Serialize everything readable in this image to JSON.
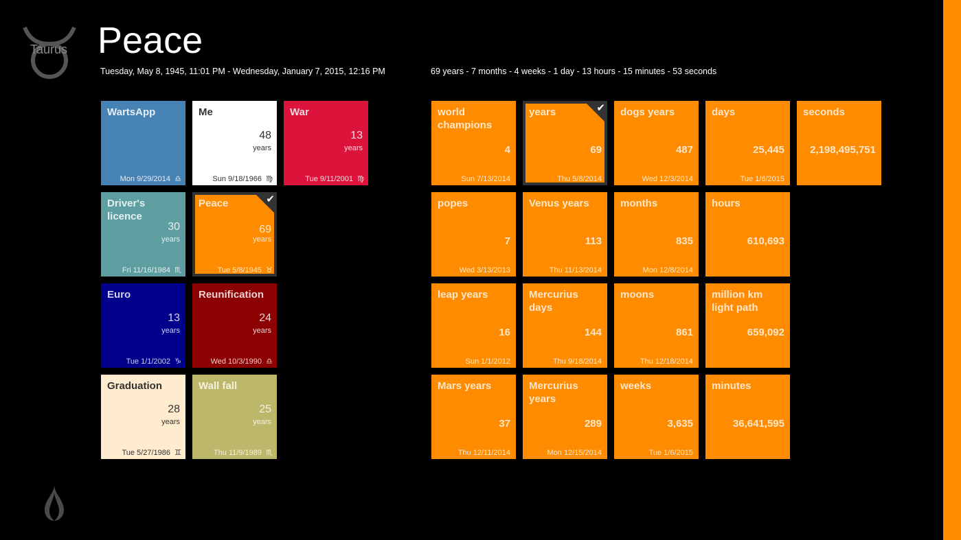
{
  "header": {
    "sign_label": "Taurus",
    "title": "Peace",
    "date_range": "Tuesday, May 8, 1945, 11:01 PM  -  Wednesday, January 7, 2015, 12:16 PM",
    "duration": "69 years - 7 months - 4 weeks - 1 day - 13 hours - 15 minutes - 53 seconds"
  },
  "colors": {
    "accent": "#ff8c00",
    "selected_border": "#333333",
    "background": "#000000"
  },
  "events": [
    {
      "title": "WartsApp",
      "number": "",
      "unit": "",
      "date": "Mon 9/29/2014",
      "sign": "♎",
      "bg": "#4682b4",
      "fg": "#e6eef6"
    },
    {
      "title": "Me",
      "number": "48",
      "unit": "years",
      "date": "Sun 9/18/1966",
      "sign": "♍",
      "bg": "#ffffff",
      "fg": "#333333"
    },
    {
      "title": "War",
      "number": "13",
      "unit": "years",
      "date": "Tue 9/11/2001",
      "sign": "♍",
      "bg": "#dc143c",
      "fg": "#f5d8de"
    },
    {
      "title": "Driver's licence",
      "number": "30",
      "unit": "years",
      "date": "Fri 11/16/1984",
      "sign": "♏",
      "bg": "#5f9ea0",
      "fg": "#e4f0f0"
    },
    {
      "title": "Peace",
      "number": "69",
      "unit": "years",
      "date": "Tue 5/8/1945",
      "sign": "♉",
      "bg": "#ff8c00",
      "fg": "#ffe6c8",
      "selected": true
    },
    {
      "title": "Euro",
      "number": "13",
      "unit": "years",
      "date": "Tue 1/1/2002",
      "sign": "♑",
      "bg": "#00008b",
      "fg": "#d0d0f0"
    },
    {
      "title": "Reunification",
      "number": "24",
      "unit": "years",
      "date": "Wed 10/3/1990",
      "sign": "♎",
      "bg": "#8b0000",
      "fg": "#f0d0d0"
    },
    {
      "title": "Graduation",
      "number": "28",
      "unit": "years",
      "date": "Tue 5/27/1986",
      "sign": "♊",
      "bg": "#ffebcd",
      "fg": "#333333"
    },
    {
      "title": "Wall fall",
      "number": "25",
      "unit": "years",
      "date": "Thu 11/9/1989",
      "sign": "♏",
      "bg": "#bdb76b",
      "fg": "#f4f2dc"
    }
  ],
  "stats": [
    {
      "title": "world champions",
      "number": "4",
      "date": "Sun 7/13/2014"
    },
    {
      "title": "years",
      "number": "69",
      "date": "Thu 5/8/2014",
      "selected": true
    },
    {
      "title": "dogs years",
      "number": "487",
      "date": "Wed 12/3/2014"
    },
    {
      "title": "days",
      "number": "25,445",
      "date": "Tue 1/6/2015"
    },
    {
      "title": "seconds",
      "number": "2,198,495,751",
      "date": ""
    },
    {
      "title": "popes",
      "number": "7",
      "date": "Wed 3/13/2013"
    },
    {
      "title": "Venus years",
      "number": "113",
      "date": "Thu 11/13/2014"
    },
    {
      "title": "months",
      "number": "835",
      "date": "Mon 12/8/2014"
    },
    {
      "title": "hours",
      "number": "610,693",
      "date": ""
    },
    {
      "title": "leap years",
      "number": "16",
      "date": "Sun 1/1/2012"
    },
    {
      "title": "Mercurius days",
      "number": "144",
      "date": "Thu 9/18/2014"
    },
    {
      "title": "moons",
      "number": "861",
      "date": "Thu 12/18/2014"
    },
    {
      "title": "million km light path",
      "number": "659,092",
      "date": ""
    },
    {
      "title": "Mars years",
      "number": "37",
      "date": "Thu 12/11/2014"
    },
    {
      "title": "Mercurius years",
      "number": "289",
      "date": "Mon 12/15/2014"
    },
    {
      "title": "weeks",
      "number": "3,635",
      "date": "Tue 1/6/2015"
    },
    {
      "title": "minutes",
      "number": "36,641,595",
      "date": ""
    }
  ],
  "icons": {
    "selected_check": "✔",
    "zodiac": "taurus-icon",
    "app": "flame-icon"
  }
}
